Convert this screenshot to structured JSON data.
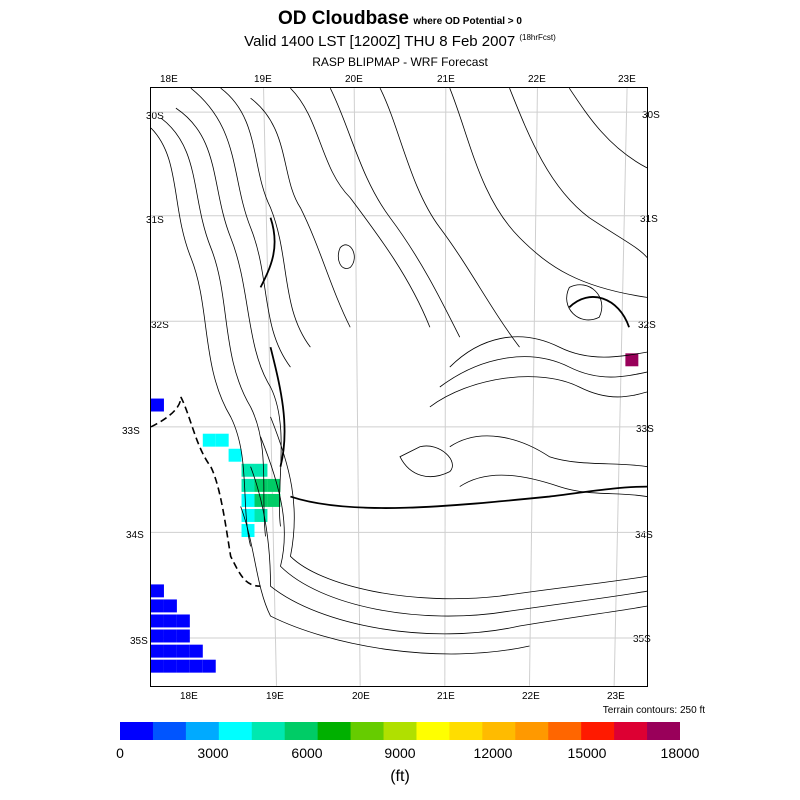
{
  "header": {
    "title": "OD Cloudbase",
    "title_note": "where OD Potential > 0",
    "valid": "Valid 1400 LST [1200Z] THU 8 Feb 2007",
    "forecast_note": "(18hrFcst)",
    "model": "RASP BLIPMAP - WRF Forecast"
  },
  "axes": {
    "top_lon": [
      "18E",
      "19E",
      "20E",
      "21E",
      "22E",
      "23E"
    ],
    "bottom_lon": [
      "18E",
      "19E",
      "20E",
      "21E",
      "22E",
      "23E"
    ],
    "left_lat": [
      "30S",
      "31S",
      "32S",
      "33S",
      "34S",
      "35S"
    ],
    "right_lat": [
      "30S",
      "31S",
      "32S",
      "33S",
      "34S",
      "35S"
    ]
  },
  "terrain_note": "Terrain contours: 250 ft",
  "legend": {
    "colors": [
      "#0000ff",
      "#0055ff",
      "#00aaff",
      "#00ffff",
      "#00e8b0",
      "#00cc66",
      "#00b000",
      "#66cc00",
      "#b0e000",
      "#ffff00",
      "#ffdd00",
      "#ffbb00",
      "#ff9900",
      "#ff6600",
      "#ff1a00",
      "#dd0033",
      "#99005a"
    ],
    "ticks": [
      "0",
      "3000",
      "6000",
      "9000",
      "12000",
      "15000",
      "18000"
    ],
    "units": "(ft)"
  },
  "cells": [
    {
      "lon": 17.6,
      "lat": 32.75,
      "color": "#0000ff"
    },
    {
      "lon": 23.1,
      "lat": 32.3,
      "color": "#99005a"
    },
    {
      "lon": 18.2,
      "lat": 33.1,
      "color": "#00ffff"
    },
    {
      "lon": 18.35,
      "lat": 33.1,
      "color": "#00ffff"
    },
    {
      "lon": 18.5,
      "lat": 33.25,
      "color": "#00ffff"
    },
    {
      "lon": 18.65,
      "lat": 33.4,
      "color": "#00e8b0"
    },
    {
      "lon": 18.8,
      "lat": 33.4,
      "color": "#00e8b0"
    },
    {
      "lon": 18.65,
      "lat": 33.55,
      "color": "#00e8b0"
    },
    {
      "lon": 18.8,
      "lat": 33.55,
      "color": "#00cc66"
    },
    {
      "lon": 18.95,
      "lat": 33.55,
      "color": "#00cc66"
    },
    {
      "lon": 18.8,
      "lat": 33.7,
      "color": "#00cc66"
    },
    {
      "lon": 18.95,
      "lat": 33.7,
      "color": "#00cc66"
    },
    {
      "lon": 18.65,
      "lat": 33.7,
      "color": "#00ffff"
    },
    {
      "lon": 18.8,
      "lat": 33.85,
      "color": "#00e8b0"
    },
    {
      "lon": 18.65,
      "lat": 33.85,
      "color": "#00ffff"
    },
    {
      "lon": 18.65,
      "lat": 34.0,
      "color": "#00ffff"
    },
    {
      "lon": 17.6,
      "lat": 34.6,
      "color": "#0000ff"
    },
    {
      "lon": 17.75,
      "lat": 34.75,
      "color": "#0000ff"
    },
    {
      "lon": 17.6,
      "lat": 34.75,
      "color": "#0000ff"
    },
    {
      "lon": 17.6,
      "lat": 34.9,
      "color": "#0000ff"
    },
    {
      "lon": 17.75,
      "lat": 34.9,
      "color": "#0000ff"
    },
    {
      "lon": 17.9,
      "lat": 34.9,
      "color": "#0000ff"
    },
    {
      "lon": 17.6,
      "lat": 35.05,
      "color": "#0000ff"
    },
    {
      "lon": 17.75,
      "lat": 35.05,
      "color": "#0000ff"
    },
    {
      "lon": 17.9,
      "lat": 35.05,
      "color": "#0000ff"
    },
    {
      "lon": 17.6,
      "lat": 35.2,
      "color": "#0000ff"
    },
    {
      "lon": 17.75,
      "lat": 35.2,
      "color": "#0000ff"
    },
    {
      "lon": 17.9,
      "lat": 35.2,
      "color": "#0000ff"
    },
    {
      "lon": 18.05,
      "lat": 35.2,
      "color": "#0000ff"
    },
    {
      "lon": 17.6,
      "lat": 35.35,
      "color": "#0000ff"
    },
    {
      "lon": 17.75,
      "lat": 35.35,
      "color": "#0000ff"
    },
    {
      "lon": 17.9,
      "lat": 35.35,
      "color": "#0000ff"
    },
    {
      "lon": 18.05,
      "lat": 35.35,
      "color": "#0000ff"
    },
    {
      "lon": 18.2,
      "lat": 35.35,
      "color": "#0000ff"
    }
  ]
}
